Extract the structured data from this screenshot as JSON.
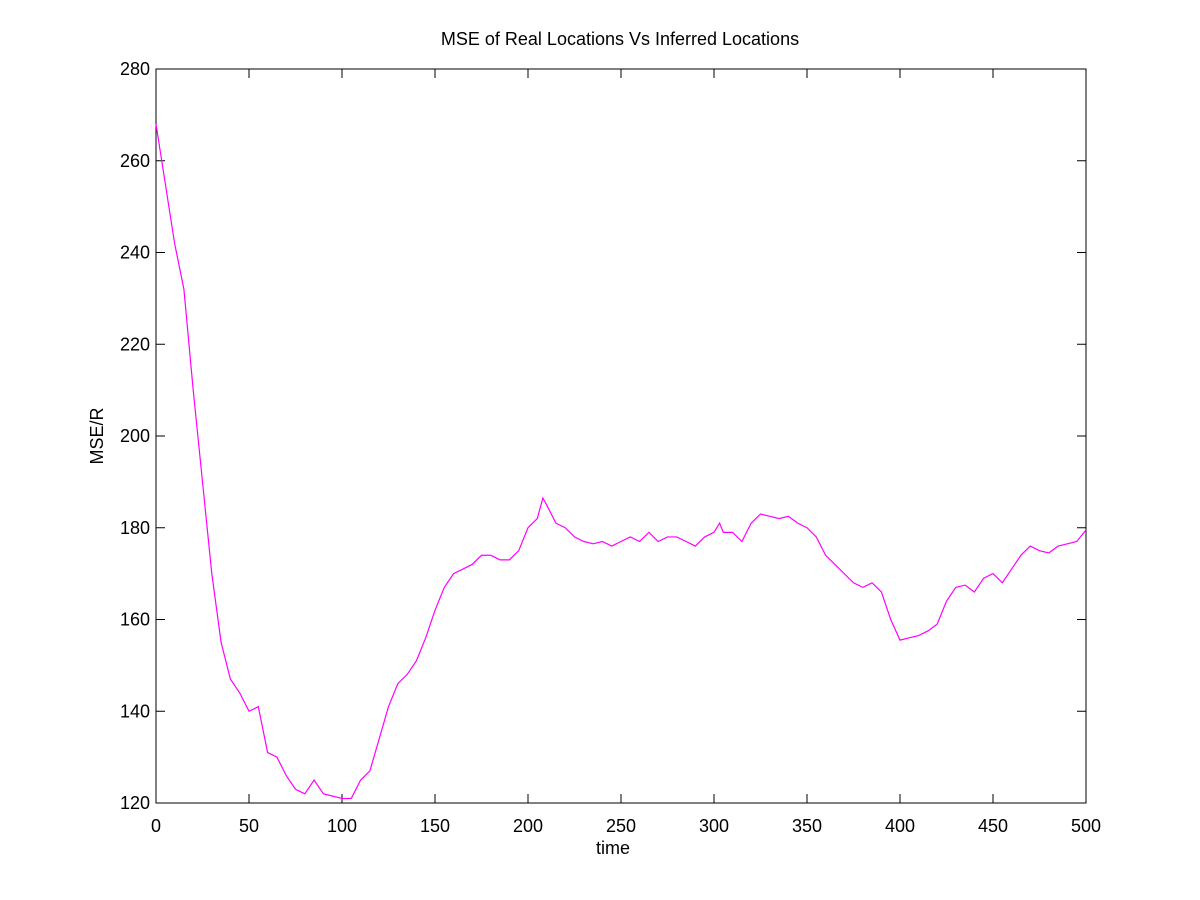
{
  "chart_data": {
    "type": "line",
    "title": "MSE of Real Locations Vs Inferred Locations",
    "x_label": "time",
    "y_label": "MSE/R",
    "x": [
      0,
      5,
      10,
      15,
      20,
      25,
      30,
      35,
      40,
      45,
      50,
      55,
      60,
      65,
      70,
      75,
      80,
      85,
      90,
      95,
      100,
      105,
      110,
      115,
      120,
      125,
      130,
      135,
      140,
      145,
      150,
      155,
      160,
      165,
      170,
      175,
      180,
      185,
      190,
      195,
      200,
      205,
      208,
      210,
      215,
      220,
      225,
      230,
      235,
      240,
      245,
      250,
      255,
      260,
      265,
      270,
      275,
      280,
      285,
      290,
      295,
      300,
      303,
      305,
      310,
      315,
      320,
      325,
      330,
      335,
      340,
      345,
      350,
      355,
      360,
      365,
      370,
      375,
      380,
      385,
      390,
      395,
      400,
      405,
      410,
      415,
      420,
      425,
      430,
      435,
      440,
      445,
      450,
      455,
      460,
      465,
      470,
      475,
      480,
      485,
      490,
      495,
      500
    ],
    "series": [
      {
        "name": "MSE",
        "color": "#ff00ff",
        "values": [
          268,
          255,
          242,
          232,
          210,
          190,
          170,
          155,
          147,
          144,
          140,
          141,
          131,
          130,
          126,
          123,
          122,
          125,
          122,
          121.5,
          121,
          121,
          125,
          127,
          134,
          141,
          146,
          148,
          151,
          156,
          162,
          167,
          170,
          171,
          172,
          174,
          174,
          173,
          173,
          175,
          180,
          182,
          186.5,
          185,
          181,
          180,
          178,
          177,
          176.5,
          177,
          176,
          177,
          178,
          177,
          179,
          177,
          178,
          178,
          177,
          176,
          178,
          179,
          181,
          179,
          179,
          177,
          181,
          183,
          182.5,
          182,
          182.5,
          181,
          180,
          178,
          174,
          172,
          170,
          168,
          167,
          168,
          166,
          160,
          155.5,
          156,
          156.5,
          157.5,
          159,
          164,
          167,
          167.5,
          166,
          169,
          170,
          168,
          171,
          174,
          176,
          175,
          174.5,
          176,
          176.5,
          177,
          179.5
        ]
      }
    ],
    "xlim": [
      0,
      500
    ],
    "xticks": [
      0,
      50,
      100,
      150,
      200,
      250,
      300,
      350,
      400,
      450,
      500
    ],
    "ylim": [
      120,
      280
    ],
    "yticks": [
      120,
      140,
      160,
      180,
      200,
      220,
      240,
      260,
      280
    ],
    "grid": false
  }
}
